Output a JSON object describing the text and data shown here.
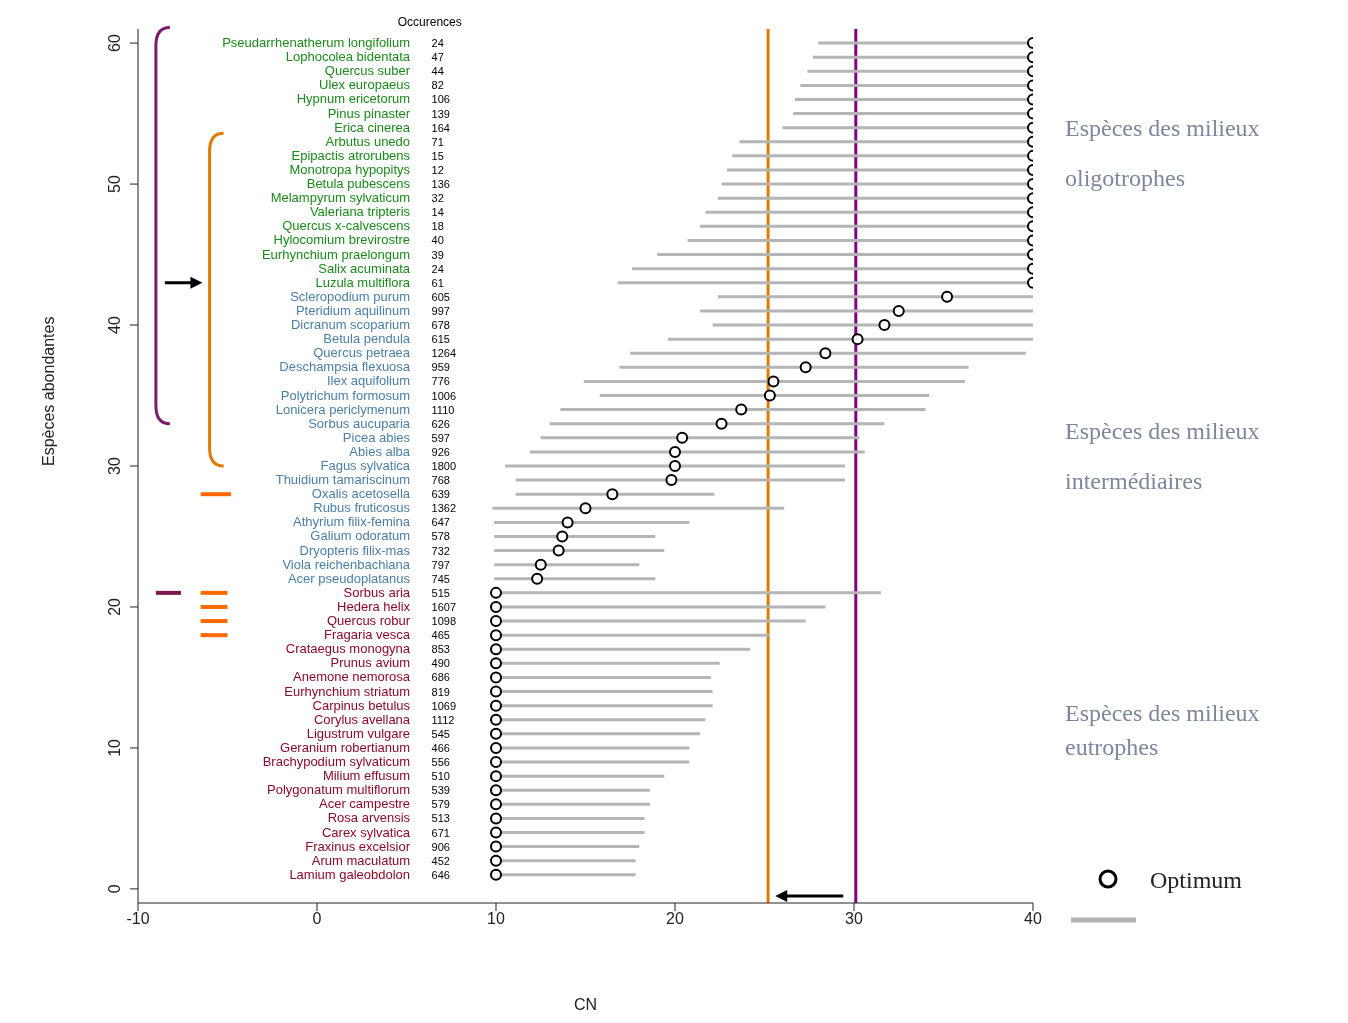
{
  "chart_data": {
    "type": "scatter",
    "xlabel": "CN",
    "ylabel": "Espèces abondantes",
    "xlim": [
      -10,
      40
    ],
    "xticks": [
      -10,
      0,
      10,
      20,
      30,
      40
    ],
    "ylim": [
      -1,
      61
    ],
    "yticks": [
      0,
      10,
      20,
      30,
      40,
      50,
      60
    ],
    "grid": false,
    "legend": "bottom right",
    "marker": "circle",
    "series": [
      {
        "name": "Optimum",
        "color": "#000000",
        "x": [
          40,
          40,
          40,
          40,
          40,
          40,
          40,
          40,
          40,
          40,
          40,
          40,
          40,
          40,
          40,
          40,
          40,
          40
        ],
        "values": [
          60,
          59,
          58,
          57,
          56,
          55,
          54,
          53,
          52,
          51,
          50,
          49,
          48,
          47,
          46,
          45,
          44,
          43
        ],
        "xerrors": [
          [
            28.0,
            40
          ],
          [
            27.7,
            40
          ],
          [
            27.4,
            40
          ],
          [
            27.0,
            40
          ],
          [
            26.7,
            40
          ],
          [
            26.6,
            40
          ],
          [
            26.0,
            40
          ],
          [
            23.6,
            40
          ],
          [
            23.2,
            40
          ],
          [
            22.9,
            40
          ],
          [
            22.6,
            40
          ],
          [
            22.4,
            40
          ],
          [
            21.7,
            40
          ],
          [
            21.4,
            40
          ],
          [
            20.7,
            40
          ],
          [
            19.0,
            40
          ],
          [
            17.6,
            40
          ],
          [
            16.8,
            40
          ]
        ]
      },
      {
        "color": "#000000",
        "x": [
          35.2,
          32.5,
          31.7,
          30.2,
          28.4,
          27.3,
          25.5,
          25.3,
          23.7,
          22.6,
          20.4,
          20.0,
          20.0,
          19.8,
          16.5,
          15.0,
          14.0,
          13.7,
          13.5,
          12.5,
          12.3
        ],
        "values": [
          42,
          41,
          40,
          39,
          38,
          37,
          36,
          35,
          34,
          33,
          32,
          31,
          30,
          29,
          28,
          27,
          26,
          25,
          24,
          23,
          22
        ],
        "xerrors": [
          [
            22.4,
            40
          ],
          [
            21.4,
            40
          ],
          [
            22.1,
            40
          ],
          [
            19.6,
            40
          ],
          [
            17.5,
            39.6
          ],
          [
            16.9,
            36.4
          ],
          [
            14.9,
            36.2
          ],
          [
            15.8,
            34.2
          ],
          [
            13.6,
            34.0
          ],
          [
            13.0,
            31.7
          ],
          [
            12.5,
            30.3
          ],
          [
            11.9,
            30.6
          ],
          [
            10.5,
            29.5
          ],
          [
            11.1,
            29.5
          ],
          [
            11.1,
            22.2
          ],
          [
            9.8,
            26.1
          ],
          [
            9.9,
            20.8
          ],
          [
            9.9,
            18.9
          ],
          [
            9.9,
            19.4
          ],
          [
            9.9,
            18.0
          ],
          [
            9.9,
            18.9
          ]
        ]
      },
      {
        "color": "#000000",
        "x": [
          10,
          10,
          10,
          10,
          10,
          10,
          10,
          10,
          10,
          10,
          10,
          10,
          10,
          10,
          10,
          10,
          10,
          10,
          10,
          10,
          10
        ],
        "values": [
          21,
          20,
          19,
          18,
          17,
          16,
          15,
          14,
          13,
          12,
          11,
          10,
          9,
          8,
          7,
          6,
          5,
          4,
          3,
          2,
          1
        ],
        "xerrors": [
          [
            10,
            31.5
          ],
          [
            10,
            28.4
          ],
          [
            10,
            27.3
          ],
          [
            10,
            25.3
          ],
          [
            10,
            24.2
          ],
          [
            10,
            22.5
          ],
          [
            10,
            22.0
          ],
          [
            10,
            22.1
          ],
          [
            10,
            22.1
          ],
          [
            10,
            21.7
          ],
          [
            10,
            21.4
          ],
          [
            10,
            20.8
          ],
          [
            10,
            20.8
          ],
          [
            10,
            19.4
          ],
          [
            10,
            18.6
          ],
          [
            10,
            18.6
          ],
          [
            10,
            18.3
          ],
          [
            10,
            18.3
          ],
          [
            10,
            18.0
          ],
          [
            10,
            17.8
          ],
          [
            10,
            17.8
          ]
        ]
      }
    ],
    "ref_lines": [
      {
        "axis": "x",
        "value": 25.2,
        "color": "#e07b00"
      },
      {
        "axis": "x",
        "value": 30.1,
        "color": "#800080"
      }
    ],
    "annotations": [
      "Espèces des milieux oligotrophes",
      "Espèces  des milieux intermédiaires",
      "Espèces des milieux eutrophes",
      "Occurences",
      "Pseudarrhenatherum longifolium",
      "Lophocolea bidentata",
      "Quercus suber",
      "Ulex europaeus",
      "Hypnum ericetorum",
      "Pinus pinaster",
      "Erica cinerea",
      "Arbutus unedo",
      "Epipactis atrorubens",
      "Monotropa hypopitys",
      "Betula pubescens",
      "Melampyrum sylvaticum",
      "Valeriana tripteris",
      "Quercus x-calvescens",
      "Hylocomium brevirostre",
      "Eurhynchium praelongum",
      "Salix acuminata",
      "Luzula multiflora",
      "Scleropodium purum",
      "Pteridium aquilinum",
      "Dicranum scoparium",
      "Betula pendula",
      "Quercus petraea",
      "Deschampsia flexuosa",
      "Ilex aquifolium",
      "Polytrichum formosum",
      "Lonicera periclymenum",
      "Sorbus aucuparia",
      "Picea abies",
      "Abies alba",
      "Fagus sylvatica",
      "Thuidium tamariscinum",
      "Oxalis acetosella",
      "Rubus fruticosus",
      "Athyrium filix-femina",
      "Galium odoratum",
      "Dryopteris filix-mas",
      "Viola reichenbachiana",
      "Acer pseudoplatanus",
      "Sorbus aria",
      "Hedera helix",
      "Quercus robur",
      "Fragaria vesca",
      "Crataegus monogyna",
      "Prunus avium",
      "Anemone nemorosa",
      "Eurhynchium striatum",
      "Carpinus betulus",
      "Corylus avellana",
      "Ligustrum vulgare",
      "Geranium robertianum",
      "Brachypodium sylvaticum",
      "Milium effusum",
      "Polygonatum multiflorum",
      "Acer campestre",
      "Rosa arvensis",
      "Carex sylvatica",
      "Fraxinus excelsior",
      "Arum maculatum",
      "Lamium galeobdolon",
      "24",
      "47",
      "44",
      "82",
      "106",
      "139",
      "164",
      "71",
      "15",
      "12",
      "136",
      "32",
      "14",
      "18",
      "40",
      "39",
      "24",
      "61",
      "605",
      "997",
      "678",
      "615",
      "1264",
      "959",
      "776",
      "1006",
      "1110",
      "626",
      "597",
      "926",
      "1800",
      "768",
      "639",
      "1362",
      "647",
      "578",
      "732",
      "797",
      "745",
      "515",
      "1607",
      "1098",
      "465",
      "853",
      "490",
      "686",
      "819",
      "1069",
      "1112",
      "545",
      "466",
      "556",
      "510",
      "539",
      "579",
      "513",
      "671",
      "906",
      "452",
      "646"
    ]
  }
}
